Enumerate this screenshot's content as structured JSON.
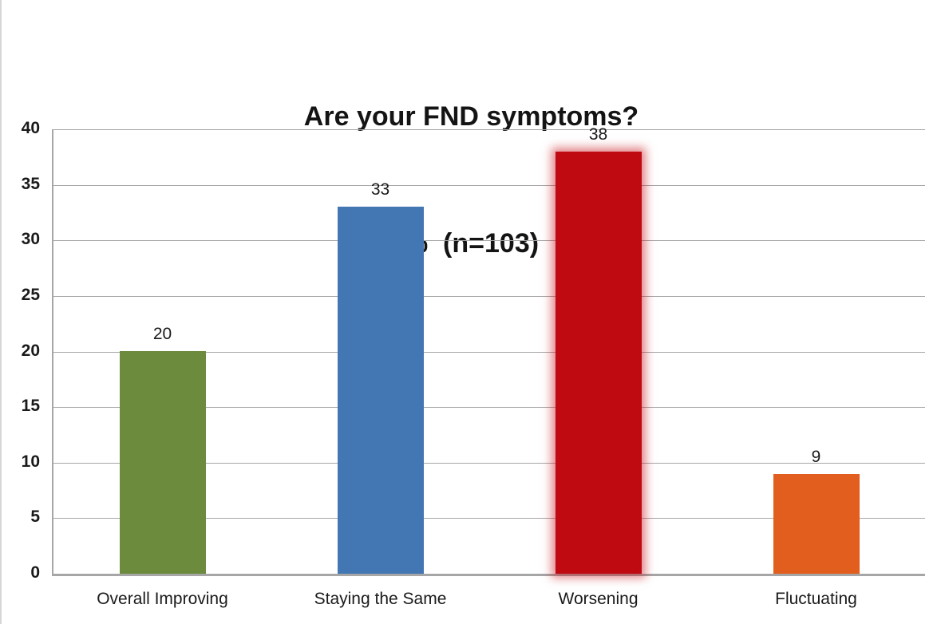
{
  "chart_data": {
    "type": "bar",
    "title_line1": "Are your FND symptoms?",
    "title_line2": "%  (n=103)",
    "categories": [
      "Overall Improving",
      "Staying the Same",
      "Worsening",
      "Fluctuating"
    ],
    "values": [
      20,
      33,
      38,
      9
    ],
    "bar_colors": [
      "#6d8b3c",
      "#4377b3",
      "#c00a12",
      "#e25e1e"
    ],
    "glow": [
      false,
      false,
      true,
      false
    ],
    "glow_color": "rgba(198,12,20,0.5)",
    "xlabel": "",
    "ylabel": "",
    "ylim": [
      0,
      40
    ],
    "yticks": [
      0,
      5,
      10,
      15,
      20,
      25,
      30,
      35,
      40
    ],
    "grid": true,
    "gridline_color": "#a6a6a6",
    "axis_color": "#a6a6a6",
    "text_color": "#1a1a1a",
    "legend": "none",
    "background_color": "#ffffff"
  }
}
